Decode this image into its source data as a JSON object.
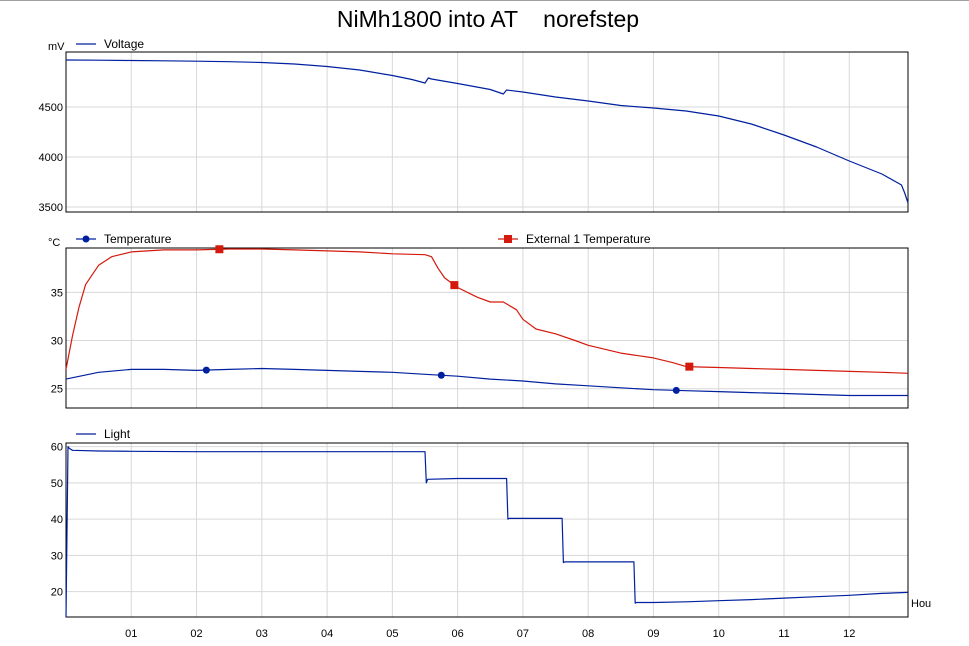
{
  "chart_data": {
    "type": "line",
    "title": "NiMh1800 into AT    norefstep",
    "x_unit_label": "Hou",
    "x_ticks": [
      "01",
      "02",
      "03",
      "04",
      "05",
      "06",
      "07",
      "08",
      "09",
      "10",
      "11",
      "12"
    ],
    "xlim": [
      0,
      12.9
    ],
    "colors": {
      "blue": "#00209f",
      "red": "#d41a0c",
      "grid": "#d8d8d8"
    },
    "panels": [
      {
        "unit": "mV",
        "ylim": [
          3450,
          5050
        ],
        "y_ticks": [
          3500,
          4000,
          4500
        ],
        "y_tick_labels": [
          "3500",
          "4000",
          "4500"
        ],
        "series": [
          {
            "name": "Voltage",
            "color": "#00209f",
            "marker": "none",
            "x": [
              0,
              0.5,
              1,
              1.5,
              2,
              2.5,
              3,
              3.5,
              4,
              4.5,
              5,
              5.3,
              5.5,
              5.55,
              5.6,
              6,
              6.5,
              6.7,
              6.75,
              7,
              7.5,
              8,
              8.5,
              9,
              9.5,
              10,
              10.5,
              11,
              11.5,
              12,
              12.5,
              12.8,
              12.85,
              12.9
            ],
            "y": [
              4970,
              4968,
              4965,
              4962,
              4958,
              4953,
              4945,
              4930,
              4905,
              4870,
              4815,
              4775,
              4740,
              4790,
              4780,
              4735,
              4675,
              4630,
              4670,
              4650,
              4600,
              4560,
              4515,
              4490,
              4460,
              4410,
              4330,
              4220,
              4100,
              3960,
              3830,
              3720,
              3640,
              3540
            ]
          }
        ]
      },
      {
        "unit": "°C",
        "ylim": [
          23,
          39.6
        ],
        "y_ticks": [
          25,
          30,
          35
        ],
        "y_tick_labels": [
          "25",
          "30",
          "35"
        ],
        "series": [
          {
            "name": "Temperature",
            "color": "#00209f",
            "marker": "circle",
            "marker_x": [
              2.15,
              5.75,
              9.35
            ],
            "x": [
              0,
              0.5,
              1,
              1.5,
              2,
              2.5,
              3,
              3.5,
              4,
              4.5,
              5,
              5.5,
              6,
              6.5,
              7,
              7.5,
              8,
              8.5,
              9,
              9.5,
              10,
              10.5,
              11,
              11.5,
              12,
              12.5,
              12.9
            ],
            "y": [
              26.0,
              26.7,
              27.0,
              27.0,
              26.9,
              27.0,
              27.1,
              27.0,
              26.9,
              26.8,
              26.7,
              26.5,
              26.3,
              26.0,
              25.8,
              25.5,
              25.3,
              25.1,
              24.9,
              24.8,
              24.7,
              24.6,
              24.5,
              24.4,
              24.3,
              24.3,
              24.3
            ]
          },
          {
            "name": "External 1 Temperature",
            "color": "#d41a0c",
            "marker": "square",
            "marker_x": [
              2.35,
              5.95,
              9.55
            ],
            "x": [
              0,
              0.1,
              0.2,
              0.3,
              0.5,
              0.7,
              1,
              1.5,
              2,
              2.5,
              3,
              3.5,
              4,
              4.5,
              5,
              5.5,
              5.6,
              5.7,
              5.8,
              6,
              6.3,
              6.5,
              6.7,
              6.9,
              7,
              7.2,
              7.5,
              7.8,
              8,
              8.5,
              9,
              9.3,
              9.5,
              10,
              10.5,
              11,
              11.5,
              12,
              12.5,
              12.9
            ],
            "y": [
              27.0,
              30.5,
              33.5,
              35.8,
              37.8,
              38.7,
              39.2,
              39.4,
              39.4,
              39.5,
              39.5,
              39.4,
              39.3,
              39.2,
              39.0,
              38.9,
              38.7,
              37.5,
              36.5,
              35.5,
              34.5,
              34.0,
              34.0,
              33.2,
              32.2,
              31.2,
              30.7,
              30.0,
              29.5,
              28.7,
              28.2,
              27.7,
              27.3,
              27.2,
              27.1,
              27.0,
              26.9,
              26.8,
              26.7,
              26.6
            ]
          }
        ]
      },
      {
        "unit": "",
        "ylim": [
          13,
          61
        ],
        "y_ticks": [
          20,
          30,
          40,
          50,
          60
        ],
        "y_tick_labels": [
          "20",
          "30",
          "40",
          "50",
          "60"
        ],
        "series": [
          {
            "name": "Light",
            "color": "#00209f",
            "marker": "none",
            "x": [
              0,
              0.03,
              0.05,
              0.1,
              0.5,
              1,
              2,
              3,
              4,
              5,
              5.5,
              5.52,
              5.54,
              6,
              6.5,
              6.75,
              6.77,
              6.79,
              7.2,
              7.6,
              7.62,
              7.64,
              8,
              8.5,
              8.7,
              8.72,
              8.74,
              9,
              9.5,
              10,
              10.5,
              11,
              11.5,
              12,
              12.5,
              12.9
            ],
            "y": [
              13,
              60,
              59.5,
              59,
              58.8,
              58.7,
              58.6,
              58.6,
              58.6,
              58.6,
              58.6,
              50,
              51,
              51.2,
              51.2,
              51.2,
              40,
              40.2,
              40.2,
              40.2,
              28,
              28.2,
              28.2,
              28.2,
              28.2,
              16.8,
              17,
              17,
              17.2,
              17.5,
              17.8,
              18.2,
              18.6,
              19,
              19.5,
              19.8
            ]
          }
        ]
      }
    ]
  }
}
